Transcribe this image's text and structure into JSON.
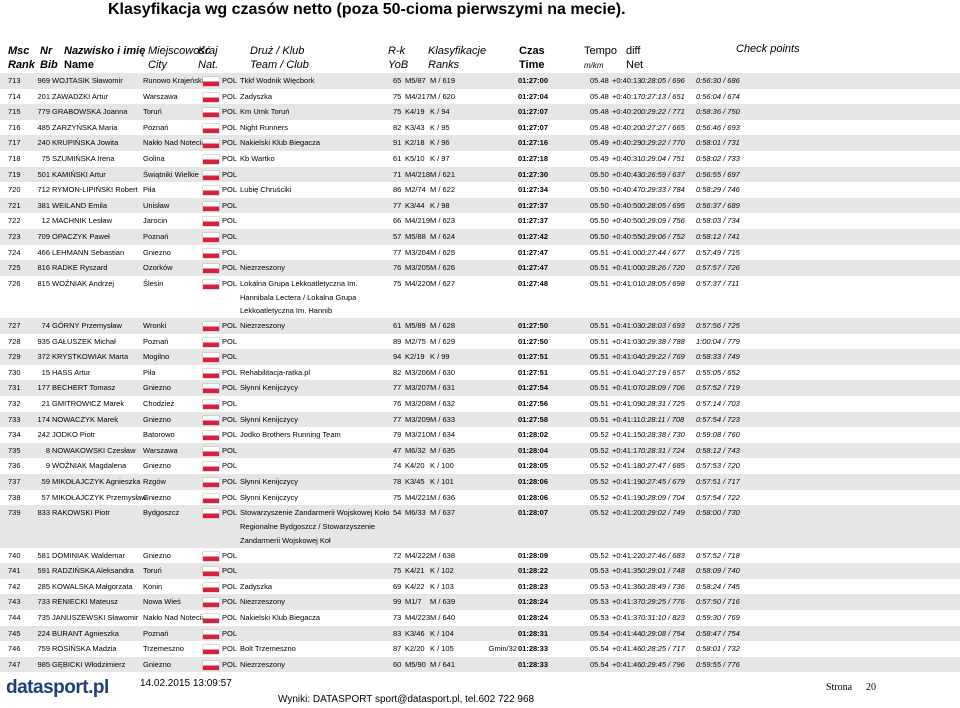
{
  "title": "Klasyfikacja wg czasów netto (poza 50-cioma pierwszymi na mecie).",
  "header": [
    {
      "top": "Msc",
      "bottom": "Rank"
    },
    {
      "top": "Nr",
      "bottom": "Bib"
    },
    {
      "top": "Nazwisko i imię",
      "bottom": "Name"
    },
    {
      "top": "Miejscowość",
      "bottom": "City"
    },
    {
      "top": "Kraj",
      "bottom": "Nat."
    },
    {
      "top": "Druż / Klub",
      "bottom": "Team / Club"
    },
    {
      "top": "R-k",
      "bottom": "YoB"
    },
    {
      "top": "Klasyfikacje",
      "bottom": "Ranks"
    },
    {
      "top": "Czas",
      "bottom": "Time"
    },
    {
      "top": "Tempo",
      "bottom": "m/km"
    },
    {
      "top": "diff",
      "bottom": "Net"
    },
    {
      "top": "Check points"
    }
  ],
  "rows": [
    {
      "rank": "713",
      "bib": "969",
      "name": "WOJTASIK Sławomir",
      "city": "Runowo Krajeńskie",
      "nat": "POL",
      "club": "Tkkf Wodnik Więcbork",
      "yob": "65",
      "cat": "M5/87",
      "cls": "M / 619",
      "time": "01:27:00",
      "tempo": "05.48",
      "diff": "+0:40:13",
      "net": "0:28:05 / 696",
      "check": "0:56:30 / 686"
    },
    {
      "rank": "714",
      "bib": "201",
      "name": "ZAWADZKI Artur",
      "city": "Warszawa",
      "nat": "POL",
      "club": "Zadyszka",
      "yob": "75",
      "cat": "M4/217",
      "cls": "M / 620",
      "time": "01:27:04",
      "tempo": "05.48",
      "diff": "+0:40:17",
      "net": "0:27:13 / 651",
      "check": "0:56:04 / 674"
    },
    {
      "rank": "715",
      "bib": "779",
      "name": "GRABOWSKA Joanna",
      "city": "Toruń",
      "nat": "POL",
      "club": "Km Umk Toruń",
      "yob": "75",
      "cat": "K4/19",
      "cls": "K / 94",
      "time": "01:27:07",
      "tempo": "05.48",
      "diff": "+0:40:20",
      "net": "0:29:22 / 771",
      "check": "0:58:36 / 750"
    },
    {
      "rank": "716",
      "bib": "485",
      "name": "ZARZYŃSKA Maria",
      "city": "Poznań",
      "nat": "POL",
      "club": "Night Runners",
      "yob": "82",
      "cat": "K3/43",
      "cls": "K / 95",
      "time": "01:27:07",
      "tempo": "05.48",
      "diff": "+0:40:20",
      "net": "0:27:27 / 665",
      "check": "0:56:46 / 693"
    },
    {
      "rank": "717",
      "bib": "240",
      "name": "KRUPIŃSKA Jowita",
      "city": "Nakło Nad Notecią",
      "nat": "POL",
      "club": "Nakielski Klub Biegacza",
      "yob": "91",
      "cat": "K2/18",
      "cls": "K / 96",
      "time": "01:27:16",
      "tempo": "05.49",
      "diff": "+0:40:29",
      "net": "0:29:22 / 770",
      "check": "0:58:01 / 731"
    },
    {
      "rank": "718",
      "bib": "75",
      "name": "SZUMIŃSKA Irena",
      "city": "Golina",
      "nat": "POL",
      "club": "Kb Wartko",
      "yob": "61",
      "cat": "K5/10",
      "cls": "K / 97",
      "time": "01:27:18",
      "tempo": "05.49",
      "diff": "+0:40:31",
      "net": "0:29:04 / 751",
      "check": "0:58:02 / 733"
    },
    {
      "rank": "719",
      "bib": "501",
      "name": "KAMIŃSKI Artur",
      "city": "Świątniki Wielkie",
      "nat": "POL",
      "yob": "71",
      "cat": "M4/218",
      "cls": "M / 621",
      "time": "01:27:30",
      "tempo": "05.50",
      "diff": "+0:40:43",
      "net": "0:26:59 / 637",
      "check": "0:56:55 / 697"
    },
    {
      "rank": "720",
      "bib": "712",
      "name": "RYMON-LIPIŃSKI Robert",
      "city": "Piła",
      "nat": "POL",
      "club": "Lubię Chruściki",
      "yob": "86",
      "cat": "M2/74",
      "cls": "M / 622",
      "time": "01:27:34",
      "tempo": "05.50",
      "diff": "+0:40:47",
      "net": "0:29:33 / 784",
      "check": "0:58:29 / 746"
    },
    {
      "rank": "721",
      "bib": "381",
      "name": "WEILAND Emila",
      "city": "Unisław",
      "nat": "POL",
      "yob": "77",
      "cat": "K3/44",
      "cls": "K / 98",
      "time": "01:27:37",
      "tempo": "05.50",
      "diff": "+0:40:50",
      "net": "0:28:05 / 695",
      "check": "0:56:37 / 689"
    },
    {
      "rank": "722",
      "bib": "12",
      "name": "MACHNIK Lesław",
      "city": "Jarocin",
      "nat": "POL",
      "yob": "66",
      "cat": "M4/219",
      "cls": "M / 623",
      "time": "01:27:37",
      "tempo": "05.50",
      "diff": "+0:40:50",
      "net": "0:29:09 / 756",
      "check": "0:58:03 / 734"
    },
    {
      "rank": "723",
      "bib": "709",
      "name": "OPACZYK Paweł",
      "city": "Poznań",
      "nat": "POL",
      "yob": "57",
      "cat": "M5/88",
      "cls": "M / 624",
      "time": "01:27:42",
      "tempo": "05.50",
      "diff": "+0:40:55",
      "net": "0:29:06 / 752",
      "check": "0:58:12 / 741"
    },
    {
      "rank": "724",
      "bib": "466",
      "name": "LEHMANN Sebastian",
      "city": "Gniezno",
      "nat": "POL",
      "yob": "77",
      "cat": "M3/204",
      "cls": "M / 625",
      "time": "01:27:47",
      "tempo": "05.51",
      "diff": "+0:41:00",
      "net": "0:27:44 / 677",
      "check": "0:57:49 / 715"
    },
    {
      "rank": "725",
      "bib": "816",
      "name": "RADKE Ryszard",
      "city": "Ozorków",
      "nat": "POL",
      "club": "Niezrzeszony",
      "yob": "76",
      "cat": "M3/205",
      "cls": "M / 626",
      "time": "01:27:47",
      "tempo": "05.51",
      "diff": "+0:41:00",
      "net": "0:28:26 / 720",
      "check": "0:57:57 / 726"
    },
    {
      "rank": "726",
      "bib": "815",
      "name": "WOŹNIAK Andrzej",
      "city": "Ślesin",
      "nat": "POL",
      "club": "Lokalna Grupa Lekkoatletyczna Im. Hannibala Lectera / Lokalna Grupa Lekkoatletyczna Im. Hannib",
      "yob": "75",
      "cat": "M4/220",
      "cls": "M / 627",
      "time": "01:27:48",
      "tempo": "05.51",
      "diff": "+0:41:01",
      "net": "0:28:05 / 698",
      "check": "0:57:37 / 711"
    },
    {
      "rank": "727",
      "bib": "74",
      "name": "GÓRNY Przemysław",
      "city": "Wronki",
      "nat": "POL",
      "club": "Niezrzeszony",
      "yob": "61",
      "cat": "M5/89",
      "cls": "M / 628",
      "time": "01:27:50",
      "tempo": "05.51",
      "diff": "+0:41:03",
      "net": "0:28:03 / 693",
      "check": "0:57:56 / 725"
    },
    {
      "rank": "728",
      "bib": "935",
      "name": "GAŁUSZEK Michał",
      "city": "Poznań",
      "nat": "POL",
      "yob": "89",
      "cat": "M2/75",
      "cls": "M / 629",
      "time": "01:27:50",
      "tempo": "05.51",
      "diff": "+0:41:03",
      "net": "0:29:38 / 788",
      "check": "1:00:04 / 779"
    },
    {
      "rank": "729",
      "bib": "372",
      "name": "KRYSTKOWIAK Marta",
      "city": "Mogilno",
      "nat": "POL",
      "yob": "94",
      "cat": "K2/19",
      "cls": "K / 99",
      "time": "01:27:51",
      "tempo": "05.51",
      "diff": "+0:41:04",
      "net": "0:29:22 / 769",
      "check": "0:58:33 / 749"
    },
    {
      "rank": "730",
      "bib": "15",
      "name": "HASS Artur",
      "city": "Piła",
      "nat": "POL",
      "club": "Rehabilitacja-ratka.pl",
      "yob": "82",
      "cat": "M3/206",
      "cls": "M / 630",
      "time": "01:27:51",
      "tempo": "05.51",
      "diff": "+0:41:04",
      "net": "0:27:19 / 657",
      "check": "0:55:05 / 652"
    },
    {
      "rank": "731",
      "bib": "177",
      "name": "BECHERT Tomasz",
      "city": "Gniezno",
      "nat": "POL",
      "club": "Słynni Kenijczycy",
      "yob": "77",
      "cat": "M3/207",
      "cls": "M / 631",
      "time": "01:27:54",
      "tempo": "05.51",
      "diff": "+0:41:07",
      "net": "0:28:09 / 706",
      "check": "0:57:52 / 719"
    },
    {
      "rank": "732",
      "bib": "21",
      "name": "GMITROWICZ Marek",
      "city": "Chodzież",
      "nat": "POL",
      "yob": "76",
      "cat": "M3/208",
      "cls": "M / 632",
      "time": "01:27:56",
      "tempo": "05.51",
      "diff": "+0:41:09",
      "net": "0:28:31 / 725",
      "check": "0:57:14 / 703"
    },
    {
      "rank": "733",
      "bib": "174",
      "name": "NOWACZYK Marek",
      "city": "Gniezno",
      "nat": "POL",
      "club": "Słynni Kenijczycy",
      "yob": "77",
      "cat": "M3/209",
      "cls": "M / 633",
      "time": "01:27:58",
      "tempo": "05.51",
      "diff": "+0:41:11",
      "net": "0:28:11 / 708",
      "check": "0:57:54 / 723"
    },
    {
      "rank": "734",
      "bib": "242",
      "name": "JODKO Piotr",
      "city": "Batorowo",
      "nat": "POL",
      "club": "Jodko Brothers Running Team",
      "yob": "79",
      "cat": "M3/210",
      "cls": "M / 634",
      "time": "01:28:02",
      "tempo": "05.52",
      "diff": "+0:41:15",
      "net": "0:28:38 / 730",
      "check": "0:59:08 / 760"
    },
    {
      "rank": "735",
      "bib": "8",
      "name": "NOWAKOWSKI Czesław",
      "city": "Warszawa",
      "nat": "POL",
      "yob": "47",
      "cat": "M6/32",
      "cls": "M / 635",
      "time": "01:28:04",
      "tempo": "05.52",
      "diff": "+0:41:17",
      "net": "0:28:31 / 724",
      "check": "0:58:12 / 743"
    },
    {
      "rank": "736",
      "bib": "9",
      "name": "WOŹNIAK Magdalena",
      "city": "Gniezno",
      "nat": "POL",
      "yob": "74",
      "cat": "K4/20",
      "cls": "K / 100",
      "time": "01:28:05",
      "tempo": "05.52",
      "diff": "+0:41:18",
      "net": "0:27:47 / 685",
      "check": "0:57:53 / 720"
    },
    {
      "rank": "737",
      "bib": "59",
      "name": "MIKOŁAJCZYK Agnieszka",
      "city": "Rzgów",
      "nat": "POL",
      "club": "Słynni Kenijczycy",
      "yob": "78",
      "cat": "K3/45",
      "cls": "K / 101",
      "time": "01:28:06",
      "tempo": "05.52",
      "diff": "+0:41:19",
      "net": "0:27:45 / 679",
      "check": "0:57:51 / 717"
    },
    {
      "rank": "738",
      "bib": "57",
      "name": "MIKOŁAJCZYK Przemysław",
      "city": "Gniezno",
      "nat": "POL",
      "club": "Słynni Kenijczycy",
      "yob": "75",
      "cat": "M4/221",
      "cls": "M / 636",
      "time": "01:28:06",
      "tempo": "05.52",
      "diff": "+0:41:19",
      "net": "0:28:09 / 704",
      "check": "0:57:54 / 722"
    },
    {
      "rank": "739",
      "bib": "833",
      "name": "RAKOWSKI Piotr",
      "city": "Bydgoszcz",
      "nat": "POL",
      "club": "Stowarzyszenie Zandarmerii Wojskowej Koło Regionalne Bydgoszcz / Stowarzyszenie Zandarmerii Wojskowej Koł",
      "yob": "54",
      "cat": "M6/33",
      "cls": "M / 637",
      "time": "01:28:07",
      "tempo": "05.52",
      "diff": "+0:41:20",
      "net": "0:29:02 / 749",
      "check": "0:58:00 / 730"
    },
    {
      "rank": "740",
      "bib": "581",
      "name": "DOMINIAK Waldemar",
      "city": "Gniezno",
      "nat": "POL",
      "yob": "72",
      "cat": "M4/222",
      "cls": "M / 638",
      "time": "01:28:09",
      "tempo": "05.52",
      "diff": "+0:41:22",
      "net": "0:27:46 / 683",
      "check": "0:57:52 / 718"
    },
    {
      "rank": "741",
      "bib": "591",
      "name": "RADZIŃSKA Aleksandra",
      "city": "Toruń",
      "nat": "POL",
      "yob": "75",
      "cat": "K4/21",
      "cls": "K / 102",
      "time": "01:28:22",
      "tempo": "05.53",
      "diff": "+0:41:35",
      "net": "0:29:01 / 748",
      "check": "0:58:09 / 740"
    },
    {
      "rank": "742",
      "bib": "285",
      "name": "KOWALSKA Małgorzata",
      "city": "Konin",
      "nat": "POL",
      "club": "Zadyszka",
      "yob": "69",
      "cat": "K4/22",
      "cls": "K / 103",
      "time": "01:28:23",
      "tempo": "05.53",
      "diff": "+0:41:36",
      "net": "0:28:49 / 736",
      "check": "0:58:24 / 745"
    },
    {
      "rank": "743",
      "bib": "733",
      "name": "RENIECKI Mateusz",
      "city": "Nowa Wieś",
      "nat": "POL",
      "club": "Niezrzeszony",
      "yob": "99",
      "cat": "M1/7",
      "cls": "M / 639",
      "time": "01:28:24",
      "tempo": "05.53",
      "diff": "+0:41:37",
      "net": "0:29:25 / 776",
      "check": "0:57:50 / 716"
    },
    {
      "rank": "744",
      "bib": "735",
      "name": "JANUSZEWSKI Sławomir",
      "city": "Nakło Nad Notecią",
      "nat": "POL",
      "club": "Nakielski Klub Biegacza",
      "yob": "73",
      "cat": "M4/223",
      "cls": "M / 640",
      "time": "01:28:24",
      "tempo": "05.53",
      "diff": "+0:41:37",
      "net": "0:31:10 / 823",
      "check": "0:59:30 / 769"
    },
    {
      "rank": "745",
      "bib": "224",
      "name": "BURANT Agnieszka",
      "city": "Poznań",
      "nat": "POL",
      "yob": "83",
      "cat": "K3/46",
      "cls": "K / 104",
      "time": "01:28:31",
      "tempo": "05.54",
      "diff": "+0:41:44",
      "net": "0:29:08 / 754",
      "check": "0:58:47 / 754"
    },
    {
      "rank": "746",
      "bib": "759",
      "name": "ROSIŃSKA Madzia",
      "city": "Trzemeszno",
      "nat": "POL",
      "club": "Bolt Trzemeszno",
      "yob": "87",
      "cat": "K2/20",
      "cls": "K / 105",
      "extra": "Gmin/32",
      "time": "01:28:33",
      "tempo": "05.54",
      "diff": "+0:41:46",
      "net": "0:28:25 / 717",
      "check": "0:58:01 / 732"
    },
    {
      "rank": "747",
      "bib": "985",
      "name": "GĘBICKI Włodzimierz",
      "city": "Gniezno",
      "nat": "POL",
      "club": "Niezrzeszony",
      "yob": "60",
      "cat": "M5/90",
      "cls": "M / 641",
      "time": "01:28:33",
      "tempo": "05.54",
      "diff": "+0:41:46",
      "net": "0:29:45 / 796",
      "check": "0:59:55 / 776"
    }
  ],
  "footer": {
    "logo": "datasport.pl",
    "timestamp": "14.02.2015 13:09:57",
    "contact": "Wyniki: DATASPORT sport@datasport.pl, tel.602 722 968",
    "page_label": "Strona",
    "page_number": "20"
  }
}
